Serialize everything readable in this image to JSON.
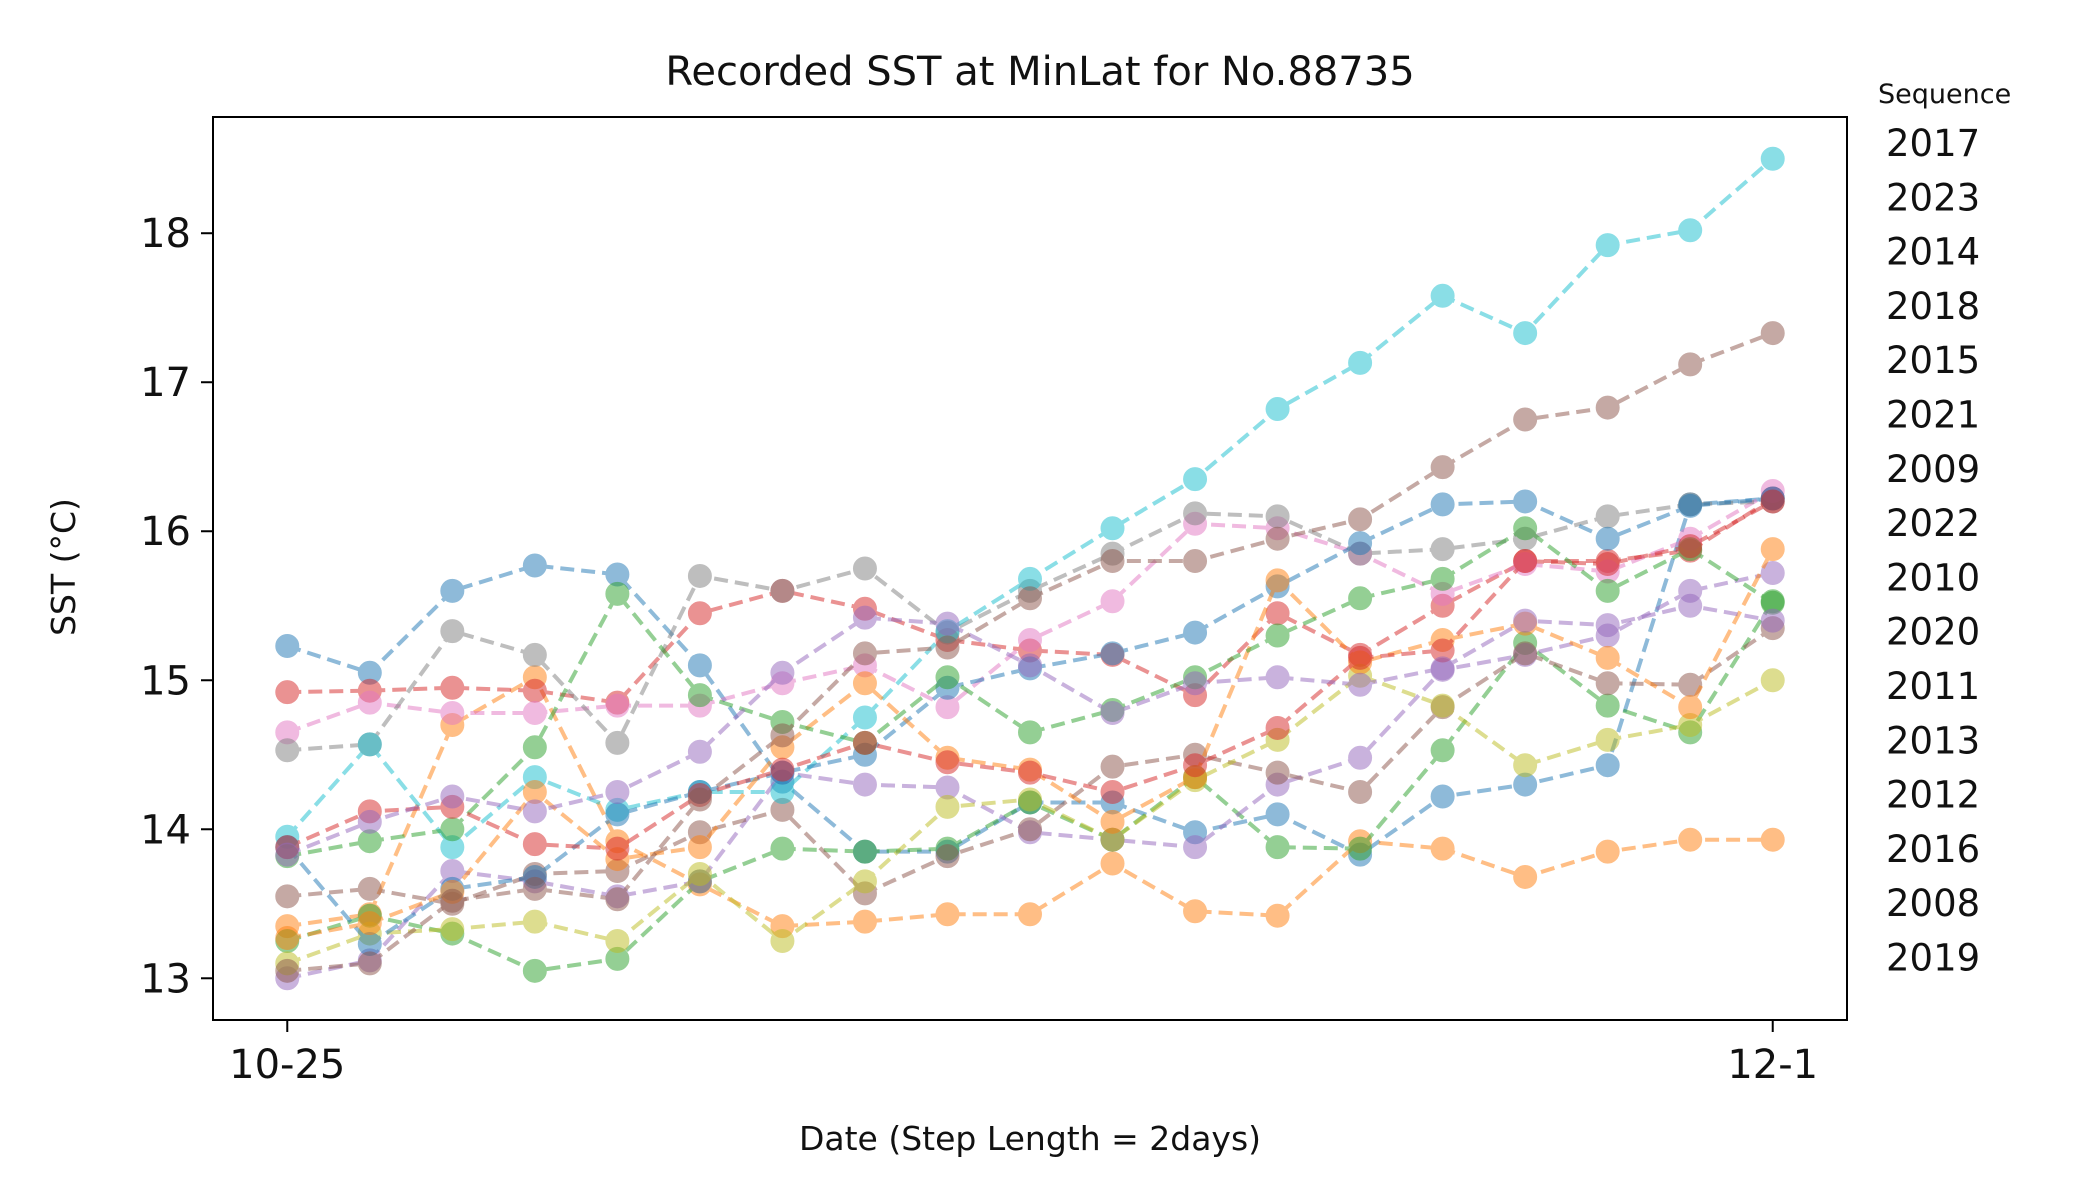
{
  "chart_data": {
    "type": "line",
    "title": "Recorded SST at MinLat for No.88735",
    "xlabel": "Date (Step Length = 2days)",
    "ylabel": "SST (°C)",
    "x": [
      0,
      1,
      2,
      3,
      4,
      5,
      6,
      7,
      8,
      9,
      10,
      11,
      12,
      13,
      14,
      15,
      16,
      17,
      18
    ],
    "x_tick_labels": [
      {
        "x": 0,
        "label": "10-25"
      },
      {
        "x": 18,
        "label": "12-1"
      }
    ],
    "xlim": [
      -0.9,
      18.9
    ],
    "ylim": [
      12.72,
      18.78
    ],
    "y_ticks": [
      13,
      14,
      15,
      16,
      17,
      18
    ],
    "grid": false,
    "legend": {
      "title": "Sequence",
      "position": "right-outside",
      "entries": [
        "2017",
        "2023",
        "2014",
        "2018",
        "2015",
        "2021",
        "2009",
        "2022",
        "2010",
        "2020",
        "2011",
        "2013",
        "2012",
        "2016",
        "2008",
        "2019"
      ]
    },
    "series": [
      {
        "name": "2017",
        "color": "#1f77b4",
        "values": [
          15.23,
          15.05,
          15.6,
          15.77,
          15.71,
          15.1,
          14.32,
          13.85,
          13.85,
          14.18,
          14.18,
          13.98,
          14.1,
          13.83,
          14.22,
          14.3,
          14.43,
          16.18,
          16.22
        ]
      },
      {
        "name": "2023",
        "color": "#ff7f0e",
        "values": [
          13.35,
          13.43,
          14.7,
          15.02,
          13.92,
          13.63,
          13.35,
          13.38,
          13.43,
          13.43,
          13.77,
          13.45,
          13.42,
          13.92,
          13.87,
          13.68,
          13.85,
          13.93,
          13.93
        ]
      },
      {
        "name": "2014",
        "color": "#2ca02c",
        "values": [
          13.25,
          13.42,
          13.3,
          13.05,
          13.13,
          13.65,
          13.87,
          13.85,
          13.87,
          14.18,
          13.93,
          14.35,
          13.88,
          13.87,
          14.53,
          15.25,
          14.83,
          14.65,
          15.53
        ]
      },
      {
        "name": "2018",
        "color": "#d62728",
        "values": [
          14.92,
          14.93,
          14.95,
          14.93,
          14.85,
          15.45,
          15.6,
          15.48,
          15.27,
          15.2,
          15.17,
          14.9,
          15.45,
          15.17,
          15.5,
          15.8,
          15.8,
          15.87,
          16.22
        ]
      },
      {
        "name": "2015",
        "color": "#9467bd",
        "values": [
          13.0,
          13.12,
          13.72,
          13.65,
          13.55,
          13.65,
          14.38,
          14.3,
          14.28,
          13.98,
          13.93,
          13.88,
          14.3,
          14.48,
          15.07,
          15.17,
          15.3,
          15.6,
          15.72
        ]
      },
      {
        "name": "2021",
        "color": "#8c564b",
        "values": [
          13.55,
          13.6,
          13.5,
          13.7,
          13.72,
          13.98,
          14.13,
          13.57,
          13.82,
          14.0,
          14.42,
          14.5,
          14.38,
          14.25,
          14.82,
          15.18,
          14.98,
          14.97,
          15.35
        ]
      },
      {
        "name": "2009",
        "color": "#e377c2",
        "values": [
          14.65,
          14.85,
          14.78,
          14.78,
          14.83,
          14.83,
          14.98,
          15.1,
          14.82,
          15.27,
          15.53,
          16.05,
          16.02,
          15.85,
          15.58,
          15.78,
          15.73,
          15.95,
          16.27
        ]
      },
      {
        "name": "2022",
        "color": "#7f7f7f",
        "values": [
          14.53,
          14.57,
          15.33,
          15.17,
          14.58,
          15.7,
          15.6,
          15.75,
          15.32,
          15.6,
          15.85,
          16.12,
          16.1,
          15.85,
          15.88,
          15.95,
          16.1,
          16.18,
          16.2
        ]
      },
      {
        "name": "2010",
        "color": "#bcbd22",
        "values": [
          13.1,
          13.3,
          13.33,
          13.38,
          13.25,
          13.7,
          13.25,
          13.65,
          14.15,
          14.2,
          13.93,
          14.33,
          14.6,
          15.03,
          14.83,
          14.43,
          14.6,
          14.7,
          15.0
        ]
      },
      {
        "name": "2020",
        "color": "#17becf",
        "values": [
          13.95,
          14.57,
          13.88,
          14.35,
          14.13,
          14.25,
          14.25,
          14.75,
          15.33,
          15.68,
          16.02,
          16.35,
          16.82,
          17.13,
          17.58,
          17.33,
          17.92,
          18.02,
          18.5
        ]
      },
      {
        "name": "2011",
        "color": "#1f77b4",
        "values": [
          13.88,
          13.23,
          13.6,
          13.68,
          14.1,
          14.25,
          14.38,
          14.5,
          14.95,
          15.08,
          15.18,
          15.32,
          15.63,
          15.92,
          16.18,
          16.2,
          15.95,
          16.17,
          16.22
        ]
      },
      {
        "name": "2013",
        "color": "#ff7f0e",
        "values": [
          13.27,
          13.37,
          13.58,
          14.25,
          13.8,
          13.88,
          14.55,
          14.98,
          14.48,
          14.4,
          14.05,
          14.35,
          15.67,
          15.12,
          15.27,
          15.38,
          15.15,
          14.82,
          15.88
        ]
      },
      {
        "name": "2012",
        "color": "#2ca02c",
        "values": [
          13.82,
          13.92,
          14.0,
          14.55,
          15.58,
          14.9,
          14.72,
          14.58,
          15.02,
          14.65,
          14.8,
          15.02,
          15.3,
          15.55,
          15.68,
          16.02,
          15.6,
          15.88,
          15.52
        ]
      },
      {
        "name": "2016",
        "color": "#d62728",
        "values": [
          13.88,
          14.12,
          14.15,
          13.9,
          13.87,
          14.23,
          14.4,
          14.58,
          14.45,
          14.38,
          14.25,
          14.43,
          14.68,
          15.15,
          15.2,
          15.8,
          15.78,
          15.9,
          16.2
        ]
      },
      {
        "name": "2008",
        "color": "#9467bd",
        "values": [
          13.83,
          14.05,
          14.22,
          14.12,
          14.25,
          14.52,
          15.05,
          15.42,
          15.38,
          15.1,
          14.78,
          14.98,
          15.02,
          14.97,
          15.08,
          15.4,
          15.37,
          15.5,
          15.4
        ]
      },
      {
        "name": "2019",
        "color": "#8c564b",
        "values": [
          13.05,
          13.1,
          13.52,
          13.6,
          13.53,
          14.2,
          14.63,
          15.18,
          15.22,
          15.55,
          15.8,
          15.8,
          15.95,
          16.08,
          16.43,
          16.75,
          16.83,
          17.12,
          17.33
        ]
      }
    ]
  }
}
